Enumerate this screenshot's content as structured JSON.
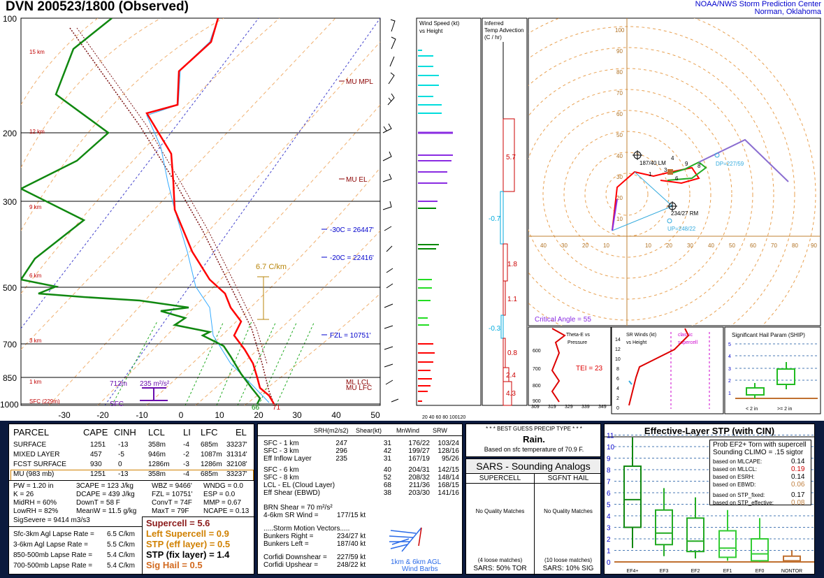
{
  "title": "DVN  200523/1800  (Observed)",
  "org": {
    "line1": "NOAA/NWS Storm Prediction Center",
    "line2": "Norman, Oklahoma"
  },
  "skewt": {
    "pressure_labels": [
      "100",
      "200",
      "300",
      "500",
      "700",
      "850",
      "1000"
    ],
    "temp_labels": [
      "-30",
      "-20",
      "-10",
      "0",
      "10",
      "20",
      "30",
      "40",
      "50"
    ],
    "height_labels": [
      "15 km",
      "12 km",
      "9 km",
      "6 km",
      "3 km",
      "1 km",
      "SFC (229m)"
    ],
    "levels": {
      "mu_mpl": "MU MPL",
      "mu_el": "MU EL",
      "c30": "-30C = 26447'",
      "c20": "-20C = 22416'",
      "fzl": "FZL = 10751'",
      "ml_lcl": "ML LCL",
      "mu_lfc": "MU LFC"
    },
    "lapse": "6.7 C/km",
    "srh": {
      "depth": "712m",
      "value": "235 m²/s²"
    },
    "sfc_label": "SFC",
    "sfc_td": "66",
    "sfc_t": "71"
  },
  "wind_panel": {
    "title1": "Wind Speed (kt)",
    "title2": "vs Height",
    "axis": "20 40 60 80 100120"
  },
  "adv_panel": {
    "title1": "Inferred",
    "title2": "Temp Advection",
    "title3": "(C / hr)",
    "vals": [
      "5.7",
      "-0.7",
      "1.8",
      "1.1",
      "-0.3",
      "0.8",
      "2.4",
      "4.3"
    ]
  },
  "hodo": {
    "y_ticks": [
      "100",
      "90",
      "80",
      "70",
      "60",
      "50",
      "40",
      "30",
      "20",
      "10"
    ],
    "x_ticks": [
      "40",
      "30",
      "20",
      "10",
      "10",
      "20",
      "30",
      "40",
      "50",
      "60",
      "70",
      "80",
      "90"
    ],
    "lm": "187/40 LM",
    "rm": "234/27 RM",
    "dp": "DP=227/59",
    "up": "UP=248/22",
    "critical": "Critical Angle = 55",
    "pts": [
      "1",
      "3",
      "4",
      "6",
      "9",
      "8"
    ]
  },
  "thetae": {
    "title1": "Theta-E vs",
    "title2": "Pressure",
    "tei": "TEI = 23",
    "x_ticks": [
      "309",
      "319",
      "329",
      "339",
      "349"
    ],
    "y_ticks": [
      "600",
      "700",
      "800",
      "900"
    ]
  },
  "srw": {
    "title1": "SR Winds (kt)",
    "title2": "vs Height",
    "classic1": "classic",
    "classic2": "supercell",
    "y_ticks": [
      "14",
      "12",
      "10",
      "8",
      "6",
      "4",
      "2",
      "0"
    ]
  },
  "ship": {
    "title": "Significant Hail Param (SHIP)",
    "y_ticks": [
      "5",
      "4",
      "3",
      "2",
      "1"
    ],
    "x1": "< 2 in",
    "x2": ">= 2 in"
  },
  "parcel": {
    "headers": [
      "PARCEL",
      "CAPE",
      "CINH",
      "LCL",
      "LI",
      "LFC",
      "EL"
    ],
    "rows": [
      [
        "SURFACE",
        "1251",
        "-13",
        "358m",
        "-4",
        "685m",
        "33237'"
      ],
      [
        "MIXED LAYER",
        "457",
        "-5",
        "946m",
        "-2",
        "1087m",
        "31314'"
      ],
      [
        "FCST SURFACE",
        "930",
        "0",
        "1286m",
        "-3",
        "1286m",
        "32108'"
      ],
      [
        "MU   (983 mb)",
        "1251",
        "-13",
        "358m",
        "-4",
        "685m",
        "33237'"
      ]
    ],
    "misc": [
      [
        "PW = 1.20 in",
        "3CAPE = 123 J/kg",
        "WBZ = 9466'",
        "WNDG = 0.0"
      ],
      [
        "K = 26",
        "DCAPE = 439 J/kg",
        "FZL = 10751'",
        "ESP = 0.0"
      ],
      [
        "MidRH = 60%",
        "DownT = 58 F",
        "ConvT = 74F",
        "MMP = 0.67"
      ],
      [
        "LowRH = 82%",
        "MeanW = 11.5 g/kg",
        "MaxT = 79F",
        "NCAPE = 0.13"
      ]
    ],
    "sigsevere": "SigSevere = 9414 m3/s3",
    "lapse": [
      [
        "Sfc-3km Agl Lapse Rate =",
        "6.5 C/km"
      ],
      [
        "3-6km Agl Lapse Rate =",
        "5.5 C/km"
      ],
      [
        "850-500mb Lapse Rate =",
        "5.4 C/km"
      ],
      [
        "700-500mb Lapse Rate =",
        "5.4 C/km"
      ]
    ],
    "params": [
      "Supercell = 5.6",
      "Left Supercell = 0.9",
      "STP (eff layer) = 0.5",
      "STP (fix layer) = 1.4",
      "Sig Hail = 0.5"
    ],
    "param_colors": [
      "#8b1a1a",
      "#d08000",
      "#d08000",
      "#000000",
      "#d2691e"
    ]
  },
  "kin": {
    "headers": [
      "SRH(m2/s2)",
      "Shear(kt)",
      "MnWind",
      "SRW"
    ],
    "rows": [
      [
        "SFC - 1 km",
        "247",
        "31",
        "176/22",
        "103/24"
      ],
      [
        "SFC - 3 km",
        "296",
        "42",
        "199/27",
        "128/16"
      ],
      [
        "Eff Inflow Layer",
        "235",
        "31",
        "167/19",
        "95/26"
      ],
      [
        "SFC - 6 km",
        "",
        "40",
        "204/31",
        "142/15"
      ],
      [
        "SFC - 8 km",
        "",
        "52",
        "208/32",
        "148/14"
      ],
      [
        "LCL - EL (Cloud Layer)",
        "",
        "68",
        "211/36",
        "168/15"
      ],
      [
        "Eff Shear (EBWD)",
        "",
        "38",
        "203/30",
        "141/16"
      ]
    ],
    "brn": "BRN Shear =  70 m²/s²",
    "srw46": "4-6km SR Wind =",
    "srw46v": "177/15 kt",
    "smv": ".....Storm Motion Vectors.....",
    "motions": [
      [
        "Bunkers Right =",
        "234/27 kt"
      ],
      [
        "Bunkers Left =",
        "187/40 kt"
      ],
      [
        "Corfidi Downshear =",
        "227/59 kt"
      ],
      [
        "Corfidi Upshear =",
        "248/22 kt"
      ]
    ],
    "barb_label1": "1km & 6km AGL",
    "barb_label2": "Wind Barbs"
  },
  "precip": {
    "title": "* * * BEST GUESS PRECIP TYPE * * *",
    "type": "Rain.",
    "basis": "Based on sfc temperature of 70.9 F."
  },
  "sars": {
    "title": "SARS - Sounding Analogs",
    "sc": "SUPERCELL",
    "sh": "SGFNT HAIL",
    "nq": "No Quality Matches",
    "sc_loose": "(4 loose matches)",
    "sh_loose": "(10 loose matches)",
    "sc_pct": "SARS:  50% TOR",
    "sh_pct": "SARS:  10% SIG"
  },
  "stp": {
    "title": "Effective-Layer STP (with CIN)",
    "prob1": "Prob EF2+ Torn with supercell",
    "prob2": "Sounding CLIMO = .15 sigtor",
    "based": [
      [
        "based on MLCAPE:",
        "0.14"
      ],
      [
        "based on MLLCL:",
        "0.19"
      ],
      [
        "based on ESRH:",
        "0.14"
      ],
      [
        "based on EBWD:",
        "0.06"
      ],
      [
        "based on STP_fixed:",
        "0.17"
      ],
      [
        "based on STP_effective:",
        "0.08"
      ]
    ],
    "based_colors": [
      "#000",
      "#c00",
      "#000",
      "#c08040",
      "#000",
      "#c08040"
    ],
    "y_ticks": [
      "11",
      "10",
      "9",
      "8",
      "7",
      "6",
      "5",
      "4",
      "3",
      "2",
      "1",
      "0"
    ],
    "cats": [
      "EF4+",
      "EF3",
      "EF2",
      "EF1",
      "EF0",
      "NONTOR"
    ]
  },
  "colors": {
    "temp": "#ff0000",
    "dew": "#008800",
    "wetbulb": "#33aaff",
    "navy": "#0b1a3d"
  }
}
